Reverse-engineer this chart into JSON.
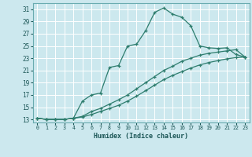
{
  "xlabel": "Humidex (Indice chaleur)",
  "bg_color": "#cce8ee",
  "grid_color": "#ffffff",
  "line_color": "#2e7d6e",
  "xlim": [
    -0.5,
    23.5
  ],
  "ylim": [
    12.5,
    32.0
  ],
  "xticks": [
    0,
    1,
    2,
    3,
    4,
    5,
    6,
    7,
    8,
    9,
    10,
    11,
    12,
    13,
    14,
    15,
    16,
    17,
    18,
    19,
    20,
    21,
    22,
    23
  ],
  "yticks": [
    13,
    15,
    17,
    19,
    21,
    23,
    25,
    27,
    29,
    31
  ],
  "line1_x": [
    0,
    1,
    2,
    3,
    4,
    5,
    6,
    7,
    8,
    9,
    10,
    11,
    12,
    13,
    14,
    15,
    16,
    17,
    18,
    19,
    20,
    21,
    22,
    23
  ],
  "line1_y": [
    13.2,
    13.0,
    13.0,
    13.0,
    13.2,
    16.0,
    17.0,
    17.3,
    21.5,
    21.8,
    25.0,
    25.3,
    27.5,
    30.5,
    31.2,
    30.2,
    29.7,
    28.3,
    25.0,
    24.7,
    24.6,
    24.7,
    23.6,
    23.2
  ],
  "line2_x": [
    0,
    1,
    2,
    3,
    4,
    5,
    6,
    7,
    8,
    9,
    10,
    11,
    12,
    13,
    14,
    15,
    16,
    17,
    18,
    19,
    20,
    21,
    22,
    23
  ],
  "line2_y": [
    13.2,
    13.0,
    13.0,
    13.0,
    13.2,
    13.5,
    14.3,
    14.8,
    15.5,
    16.2,
    17.0,
    18.0,
    19.0,
    20.0,
    21.0,
    21.7,
    22.5,
    23.0,
    23.5,
    23.8,
    24.0,
    24.2,
    24.4,
    23.2
  ],
  "line3_x": [
    0,
    1,
    2,
    3,
    4,
    5,
    6,
    7,
    8,
    9,
    10,
    11,
    12,
    13,
    14,
    15,
    16,
    17,
    18,
    19,
    20,
    21,
    22,
    23
  ],
  "line3_y": [
    13.2,
    13.0,
    13.0,
    13.0,
    13.2,
    13.4,
    13.8,
    14.3,
    14.8,
    15.3,
    16.0,
    16.8,
    17.7,
    18.6,
    19.5,
    20.2,
    20.8,
    21.4,
    21.9,
    22.3,
    22.6,
    22.9,
    23.1,
    23.2
  ]
}
